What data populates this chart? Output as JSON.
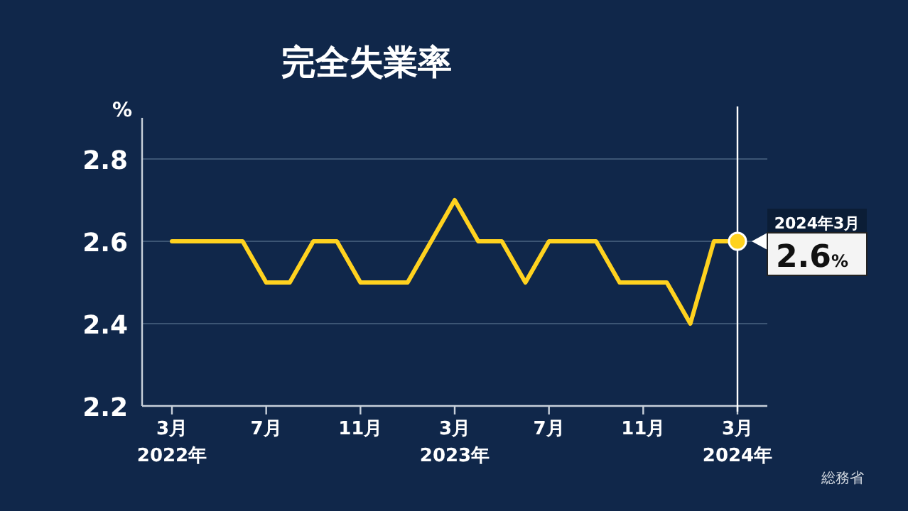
{
  "chart_data": {
    "type": "line",
    "title": "完全失業率",
    "ylabel": "%",
    "categories": [
      "3月\n2022年",
      null,
      null,
      null,
      "7月",
      null,
      null,
      null,
      "11月",
      null,
      null,
      null,
      "3月\n2023年",
      null,
      null,
      null,
      "7月",
      null,
      null,
      null,
      "11月",
      null,
      null,
      null,
      "3月\n2024年"
    ],
    "series": [
      {
        "color": "#ffd21f",
        "values": [
          2.6,
          2.6,
          2.6,
          2.6,
          2.5,
          2.5,
          2.6,
          2.6,
          2.5,
          2.5,
          2.5,
          2.6,
          2.7,
          2.6,
          2.6,
          2.5,
          2.6,
          2.6,
          2.6,
          2.5,
          2.5,
          2.5,
          2.4,
          2.6,
          2.6
        ]
      },
      {
        "type": "scatter",
        "color": "#ffd21f",
        "x": [
          "3月\n2024年"
        ],
        "values": [
          2.6
        ],
        "value_labels": [
          "2.6%"
        ]
      }
    ],
    "ylim": [
      2.2,
      2.9
    ],
    "yticks": [
      2.2,
      2.4,
      2.6,
      2.8
    ],
    "grid": "y",
    "ref_lines": [
      {
        "axis": "x",
        "value": "3月\n2024年",
        "color": "#ffffff"
      }
    ],
    "annotations": [
      {
        "text": "2024年3月",
        "x": "3月\n2024年",
        "y": 2.6
      },
      "総務省"
    ]
  }
}
